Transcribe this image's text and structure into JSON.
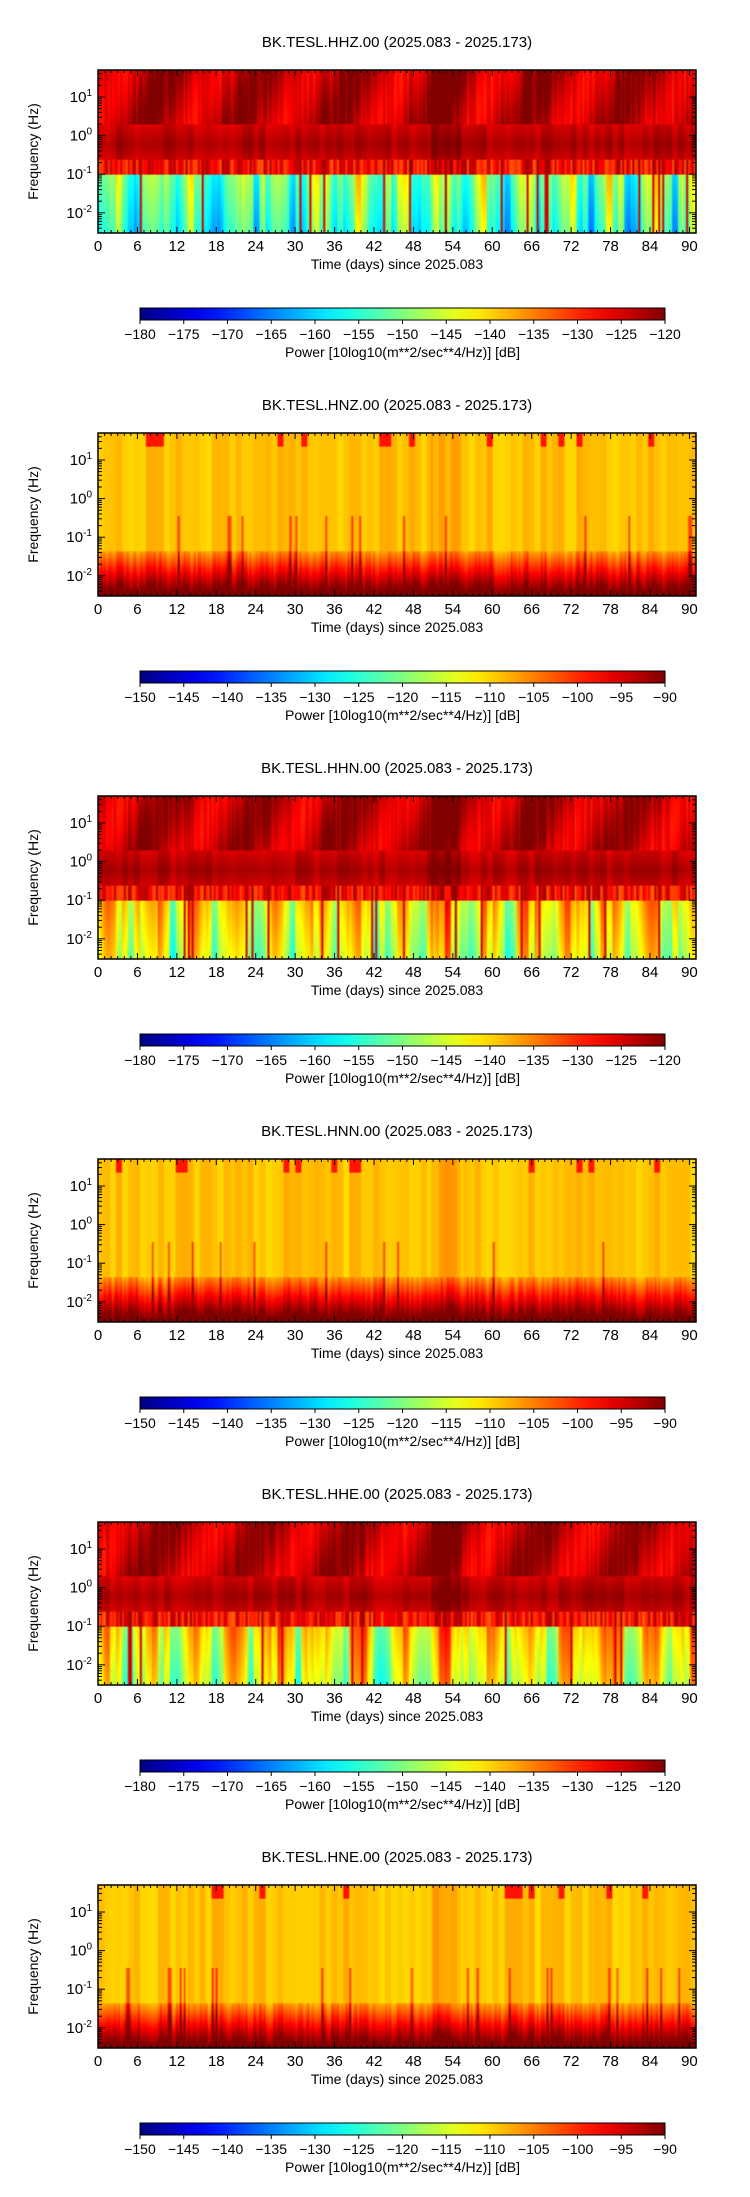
{
  "chart_data": [
    {
      "type": "heatmap",
      "title": "BK.TESL.HHZ.00 (2025.083 - 2025.173)",
      "xlabel": "Time (days) since 2025.083",
      "ylabel": "Frequency (Hz)",
      "x_ticks": [
        "0",
        "6",
        "12",
        "18",
        "24",
        "30",
        "36",
        "42",
        "48",
        "54",
        "60",
        "66",
        "72",
        "78",
        "84",
        "90"
      ],
      "xlim": [
        0,
        91
      ],
      "y_scale": "log",
      "ylim": [
        0.003,
        50
      ],
      "y_ticks": [
        {
          "base": "10",
          "exp": "1",
          "value": 10
        },
        {
          "base": "10",
          "exp": "0",
          "value": 1
        },
        {
          "base": "10",
          "exp": "-1",
          "value": 0.1
        },
        {
          "base": "10",
          "exp": "-2",
          "value": 0.01
        }
      ],
      "colorbar": {
        "label": "Power [10log10(m**2/sec**4/Hz)] [dB]",
        "range": [
          -180,
          -120
        ],
        "ticks": [
          "−180",
          "−175",
          "−170",
          "−165",
          "−160",
          "−155",
          "−150",
          "−145",
          "−140",
          "−135",
          "−130",
          "−125",
          "−120"
        ]
      }
    },
    {
      "type": "heatmap",
      "title": "BK.TESL.HNZ.00 (2025.083 - 2025.173)",
      "xlabel": "Time (days) since 2025.083",
      "ylabel": "Frequency (Hz)",
      "x_ticks": [
        "0",
        "6",
        "12",
        "18",
        "24",
        "30",
        "36",
        "42",
        "48",
        "54",
        "60",
        "66",
        "72",
        "78",
        "84",
        "90"
      ],
      "xlim": [
        0,
        91
      ],
      "y_scale": "log",
      "ylim": [
        0.003,
        50
      ],
      "y_ticks": [
        {
          "base": "10",
          "exp": "1",
          "value": 10
        },
        {
          "base": "10",
          "exp": "0",
          "value": 1
        },
        {
          "base": "10",
          "exp": "-1",
          "value": 0.1
        },
        {
          "base": "10",
          "exp": "-2",
          "value": 0.01
        }
      ],
      "colorbar": {
        "label": "Power [10log10(m**2/sec**4/Hz)] [dB]",
        "range": [
          -150,
          -90
        ],
        "ticks": [
          "−150",
          "−145",
          "−140",
          "−135",
          "−130",
          "−125",
          "−120",
          "−115",
          "−110",
          "−105",
          "−100",
          "−95",
          "−90"
        ]
      }
    },
    {
      "type": "heatmap",
      "title": "BK.TESL.HHN.00 (2025.083 - 2025.173)",
      "xlabel": "Time (days) since 2025.083",
      "ylabel": "Frequency (Hz)",
      "x_ticks": [
        "0",
        "6",
        "12",
        "18",
        "24",
        "30",
        "36",
        "42",
        "48",
        "54",
        "60",
        "66",
        "72",
        "78",
        "84",
        "90"
      ],
      "xlim": [
        0,
        91
      ],
      "y_scale": "log",
      "ylim": [
        0.003,
        50
      ],
      "y_ticks": [
        {
          "base": "10",
          "exp": "1",
          "value": 10
        },
        {
          "base": "10",
          "exp": "0",
          "value": 1
        },
        {
          "base": "10",
          "exp": "-1",
          "value": 0.1
        },
        {
          "base": "10",
          "exp": "-2",
          "value": 0.01
        }
      ],
      "colorbar": {
        "label": "Power [10log10(m**2/sec**4/Hz)] [dB]",
        "range": [
          -180,
          -120
        ],
        "ticks": [
          "−180",
          "−175",
          "−170",
          "−165",
          "−160",
          "−155",
          "−150",
          "−145",
          "−140",
          "−135",
          "−130",
          "−125",
          "−120"
        ]
      }
    },
    {
      "type": "heatmap",
      "title": "BK.TESL.HNN.00 (2025.083 - 2025.173)",
      "xlabel": "Time (days) since 2025.083",
      "ylabel": "Frequency (Hz)",
      "x_ticks": [
        "0",
        "6",
        "12",
        "18",
        "24",
        "30",
        "36",
        "42",
        "48",
        "54",
        "60",
        "66",
        "72",
        "78",
        "84",
        "90"
      ],
      "xlim": [
        0,
        91
      ],
      "y_scale": "log",
      "ylim": [
        0.003,
        50
      ],
      "y_ticks": [
        {
          "base": "10",
          "exp": "1",
          "value": 10
        },
        {
          "base": "10",
          "exp": "0",
          "value": 1
        },
        {
          "base": "10",
          "exp": "-1",
          "value": 0.1
        },
        {
          "base": "10",
          "exp": "-2",
          "value": 0.01
        }
      ],
      "colorbar": {
        "label": "Power [10log10(m**2/sec**4/Hz)] [dB]",
        "range": [
          -150,
          -90
        ],
        "ticks": [
          "−150",
          "−145",
          "−140",
          "−135",
          "−130",
          "−125",
          "−120",
          "−115",
          "−110",
          "−105",
          "−100",
          "−95",
          "−90"
        ]
      }
    },
    {
      "type": "heatmap",
      "title": "BK.TESL.HHE.00 (2025.083 - 2025.173)",
      "xlabel": "Time (days) since 2025.083",
      "ylabel": "Frequency (Hz)",
      "x_ticks": [
        "0",
        "6",
        "12",
        "18",
        "24",
        "30",
        "36",
        "42",
        "48",
        "54",
        "60",
        "66",
        "72",
        "78",
        "84",
        "90"
      ],
      "xlim": [
        0,
        91
      ],
      "y_scale": "log",
      "ylim": [
        0.003,
        50
      ],
      "y_ticks": [
        {
          "base": "10",
          "exp": "1",
          "value": 10
        },
        {
          "base": "10",
          "exp": "0",
          "value": 1
        },
        {
          "base": "10",
          "exp": "-1",
          "value": 0.1
        },
        {
          "base": "10",
          "exp": "-2",
          "value": 0.01
        }
      ],
      "colorbar": {
        "label": "Power [10log10(m**2/sec**4/Hz)] [dB]",
        "range": [
          -180,
          -120
        ],
        "ticks": [
          "−180",
          "−175",
          "−170",
          "−165",
          "−160",
          "−155",
          "−150",
          "−145",
          "−140",
          "−135",
          "−130",
          "−125",
          "−120"
        ]
      }
    },
    {
      "type": "heatmap",
      "title": "BK.TESL.HNE.00 (2025.083 - 2025.173)",
      "xlabel": "Time (days) since 2025.083",
      "ylabel": "Frequency (Hz)",
      "x_ticks": [
        "0",
        "6",
        "12",
        "18",
        "24",
        "30",
        "36",
        "42",
        "48",
        "54",
        "60",
        "66",
        "72",
        "78",
        "84",
        "90"
      ],
      "xlim": [
        0,
        91
      ],
      "y_scale": "log",
      "ylim": [
        0.003,
        50
      ],
      "y_ticks": [
        {
          "base": "10",
          "exp": "1",
          "value": 10
        },
        {
          "base": "10",
          "exp": "0",
          "value": 1
        },
        {
          "base": "10",
          "exp": "-1",
          "value": 0.1
        },
        {
          "base": "10",
          "exp": "-2",
          "value": 0.01
        }
      ],
      "colorbar": {
        "label": "Power [10log10(m**2/sec**4/Hz)] [dB]",
        "range": [
          -150,
          -90
        ],
        "ticks": [
          "−150",
          "−145",
          "−140",
          "−135",
          "−130",
          "−125",
          "−120",
          "−115",
          "−110",
          "−105",
          "−100",
          "−95",
          "−90"
        ]
      }
    }
  ]
}
